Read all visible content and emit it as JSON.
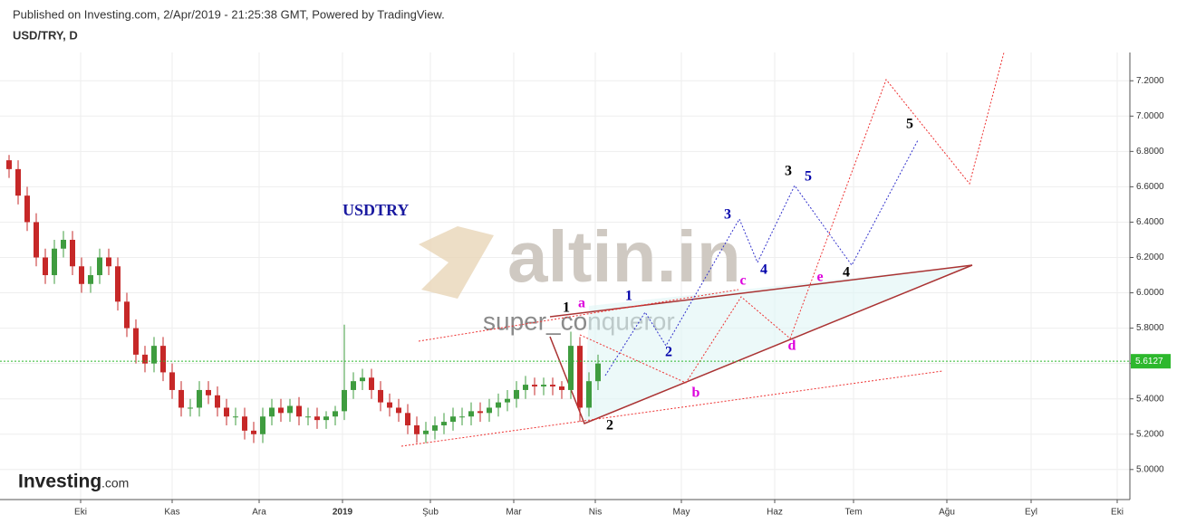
{
  "chart_data": {
    "type": "candlestick",
    "header": "Published on Investing.com, 2/Apr/2019 - 21:25:38 GMT, Powered by TradingView.",
    "title": "USD/TRY, D",
    "symbol_label": "USDTRY",
    "watermark": "altin.in",
    "watermark_user": "super_conqueror",
    "logo": "Investing",
    "logo_suffix": ".com",
    "open": [
      6.75,
      6.7,
      6.55,
      6.4,
      6.2,
      6.1,
      6.25,
      6.3,
      6.15,
      6.05,
      6.1,
      6.2,
      6.15,
      5.95,
      5.8,
      5.65,
      5.6,
      5.7,
      5.55,
      5.45,
      5.35,
      5.35,
      5.45,
      5.42,
      5.35,
      5.3,
      5.3,
      5.22,
      5.2,
      5.3,
      5.35,
      5.32,
      5.36,
      5.3,
      5.3,
      5.28,
      5.3,
      5.33,
      5.45,
      5.5,
      5.52,
      5.45,
      5.38,
      5.35,
      5.32,
      5.25,
      5.2,
      5.22,
      5.25,
      5.27,
      5.3,
      5.3,
      5.33,
      5.32,
      5.35,
      5.38,
      5.4,
      5.45,
      5.48,
      5.47,
      5.48,
      5.47,
      5.45,
      5.7,
      5.35,
      5.5
    ],
    "high": [
      6.78,
      6.75,
      6.6,
      6.45,
      6.25,
      6.3,
      6.35,
      6.35,
      6.2,
      6.15,
      6.25,
      6.25,
      6.2,
      6.0,
      5.85,
      5.7,
      5.75,
      5.75,
      5.6,
      5.5,
      5.4,
      5.5,
      5.5,
      5.47,
      5.4,
      5.35,
      5.35,
      5.27,
      5.35,
      5.4,
      5.4,
      5.4,
      5.41,
      5.35,
      5.35,
      5.33,
      5.36,
      5.82,
      5.55,
      5.57,
      5.57,
      5.5,
      5.43,
      5.4,
      5.37,
      5.3,
      5.27,
      5.3,
      5.32,
      5.35,
      5.35,
      5.38,
      5.38,
      5.4,
      5.43,
      5.45,
      5.5,
      5.53,
      5.52,
      5.52,
      5.52,
      5.5,
      5.78,
      5.75,
      5.55,
      5.65
    ],
    "low": [
      6.65,
      6.5,
      6.35,
      6.15,
      6.05,
      6.05,
      6.2,
      6.1,
      6.0,
      6.0,
      6.05,
      6.1,
      5.9,
      5.75,
      5.6,
      5.55,
      5.55,
      5.5,
      5.4,
      5.3,
      5.3,
      5.3,
      5.37,
      5.3,
      5.25,
      5.25,
      5.17,
      5.15,
      5.15,
      5.25,
      5.27,
      5.27,
      5.25,
      5.25,
      5.23,
      5.23,
      5.25,
      5.28,
      5.4,
      5.45,
      5.4,
      5.33,
      5.3,
      5.27,
      5.2,
      5.15,
      5.15,
      5.17,
      5.2,
      5.22,
      5.25,
      5.25,
      5.27,
      5.27,
      5.3,
      5.33,
      5.35,
      5.4,
      5.42,
      5.42,
      5.42,
      5.4,
      5.4,
      5.27,
      5.3,
      5.45
    ],
    "close": [
      6.7,
      6.55,
      6.4,
      6.2,
      6.1,
      6.25,
      6.3,
      6.15,
      6.05,
      6.1,
      6.2,
      6.15,
      5.95,
      5.8,
      5.65,
      5.6,
      5.7,
      5.55,
      5.45,
      5.35,
      5.35,
      5.45,
      5.42,
      5.35,
      5.3,
      5.3,
      5.22,
      5.2,
      5.3,
      5.35,
      5.32,
      5.36,
      5.3,
      5.3,
      5.28,
      5.3,
      5.33,
      5.45,
      5.5,
      5.52,
      5.45,
      5.38,
      5.35,
      5.32,
      5.25,
      5.2,
      5.22,
      5.25,
      5.27,
      5.3,
      5.3,
      5.33,
      5.32,
      5.35,
      5.38,
      5.4,
      5.45,
      5.48,
      5.47,
      5.48,
      5.47,
      5.45,
      5.7,
      5.35,
      5.5,
      5.6
    ],
    "up_color": "#3f9c3f",
    "down_color": "#c62828",
    "last_price": 5.6127,
    "last_price_color": "#2db82d",
    "xlim": [
      -1,
      123.7
    ],
    "xticks": [
      {
        "value": 7.9,
        "label": "Eki"
      },
      {
        "value": 18,
        "label": "Kas"
      },
      {
        "value": 27.6,
        "label": "Ara"
      },
      {
        "value": 36.8,
        "label": "2019"
      },
      {
        "value": 46.5,
        "label": "Şub"
      },
      {
        "value": 55.7,
        "label": "Mar"
      },
      {
        "value": 64.7,
        "label": "Nis"
      },
      {
        "value": 74.2,
        "label": "May"
      },
      {
        "value": 84.5,
        "label": "Haz"
      },
      {
        "value": 93.2,
        "label": "Tem"
      },
      {
        "value": 103.5,
        "label": "Ağu"
      },
      {
        "value": 112.8,
        "label": "Eyl"
      },
      {
        "value": 122.3,
        "label": "Eki"
      }
    ],
    "ylim": [
      4.83,
      7.36
    ],
    "yticks": [
      {
        "value": 5,
        "label": "5.0000"
      },
      {
        "value": 5.2,
        "label": "5.2000"
      },
      {
        "value": 5.4,
        "label": "5.4000"
      },
      {
        "value": 5.6,
        "label": "5.6000"
      },
      {
        "value": 5.8,
        "label": "5.8000"
      },
      {
        "value": 6,
        "label": "6.0000"
      },
      {
        "value": 6.2,
        "label": "6.2000"
      },
      {
        "value": 6.4,
        "label": "6.4000"
      },
      {
        "value": 6.6,
        "label": "6.6000"
      },
      {
        "value": 6.8,
        "label": "6.8000"
      },
      {
        "value": 7,
        "label": "7.0000"
      },
      {
        "value": 7.2,
        "label": "7.2000"
      }
    ],
    "grid": true,
    "wave_labels": [
      "1",
      "a",
      "1",
      "2",
      "b",
      "3",
      "c",
      "4",
      "d",
      "3",
      "5",
      "e",
      "4",
      "5",
      "2"
    ]
  }
}
